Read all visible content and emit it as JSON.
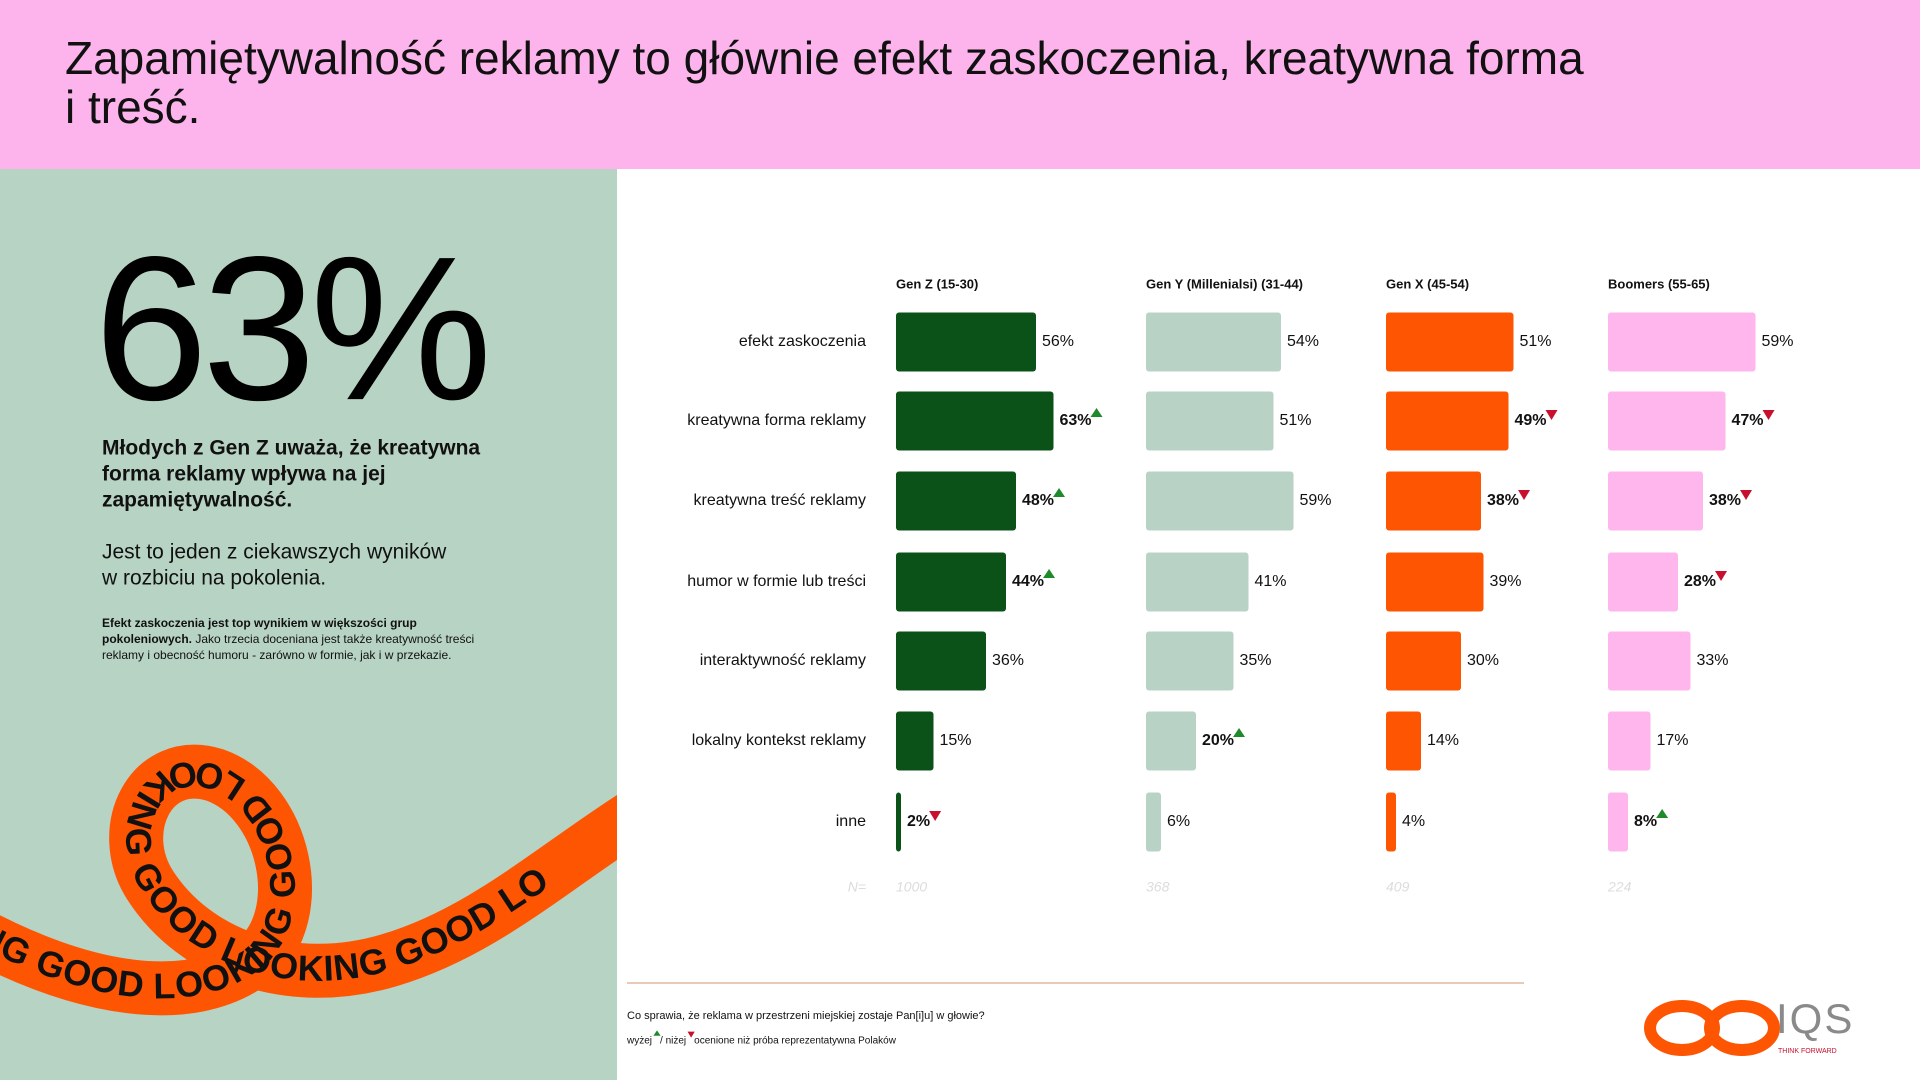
{
  "header": {
    "title_lines": [
      "Zapamiętywalność reklamy to głównie efekt zaskoczenia, kreatywna forma",
      "i treść."
    ]
  },
  "left_panel": {
    "big_number": "63%",
    "bold_lines": [
      "Młodych z Gen Z uważa, że kreatywna",
      "forma reklamy wpływa na jej",
      "zapamiętywalność."
    ],
    "paragraph_lines": [
      "Jest to jeden z ciekawszych wyników",
      "w rozbiciu na pokolenia."
    ],
    "note_lines": [
      {
        "bold": "Efekt zaskoczenia jest top wynikiem w większości grup",
        "regular": ""
      },
      {
        "bold": "pokoleniowych.",
        "regular": " Jako trzecia doceniana jest także kreatywność treści"
      },
      {
        "bold": "",
        "regular": "reklamy i obecność humoru - zarówno w formie, jak i w przekazie."
      }
    ],
    "ribbon_text": "ING GOOD LOOKING GOOD LOOKING GOOD LOOKING GOOD LO"
  },
  "sample_label": "N=",
  "chart_data": [
    {
      "type": "hbar",
      "title": "Gen Z (15-30)",
      "color": "#0b5219",
      "categories": [
        "efekt zaskoczenia",
        "kreatywna forma reklamy",
        "kreatywna treść reklamy",
        "humor w formie lub treści",
        "interaktywność reklamy",
        "lokalny kontekst reklamy",
        "inne"
      ],
      "values": [
        56,
        63,
        48,
        44,
        36,
        15,
        2
      ],
      "value_labels": [
        "56%",
        "63%",
        "48%",
        "44%",
        "36%",
        "15%",
        "2%"
      ],
      "markers": [
        null,
        "up",
        "up",
        "up",
        null,
        null,
        "down"
      ],
      "n": 1000
    },
    {
      "type": "hbar",
      "title": "Gen Y (Millenialsi) (31-44)",
      "color": "#b8d3c5",
      "values": [
        54,
        51,
        59,
        41,
        35,
        20,
        6
      ],
      "value_labels": [
        "54%",
        "51%",
        "59%",
        "41%",
        "35%",
        "20%",
        "6%"
      ],
      "markers": [
        null,
        null,
        null,
        null,
        null,
        "up",
        null
      ],
      "n": 368
    },
    {
      "type": "hbar",
      "title": "Gen X (45-54)",
      "color": "#fe5502",
      "values": [
        51,
        49,
        38,
        39,
        30,
        14,
        4
      ],
      "value_labels": [
        "51%",
        "49%",
        "38%",
        "39%",
        "30%",
        "14%",
        "4%"
      ],
      "markers": [
        null,
        "down",
        "down",
        null,
        null,
        null,
        null
      ],
      "n": 409
    },
    {
      "type": "hbar",
      "title": "Boomers (55-65)",
      "color": "#ffb6ec",
      "values": [
        59,
        47,
        38,
        28,
        33,
        17,
        8
      ],
      "value_labels": [
        "59%",
        "47%",
        "38%",
        "28%",
        "33%",
        "17%",
        "8%"
      ],
      "markers": [
        null,
        "down",
        "down",
        "down",
        null,
        null,
        "up"
      ],
      "n": 224
    }
  ],
  "footer": {
    "question": "Co sprawia, że reklama w przestrzeni miejskiej zostaje Pan[i]u] w głowie?",
    "legend_up": "wyżej",
    "legend_down": "/ niżej",
    "legend_rest": "ocenione niż próba reprezentatywna Polaków"
  },
  "logos": {
    "brand": "IQS",
    "tagline": "THINK FORWARD"
  }
}
